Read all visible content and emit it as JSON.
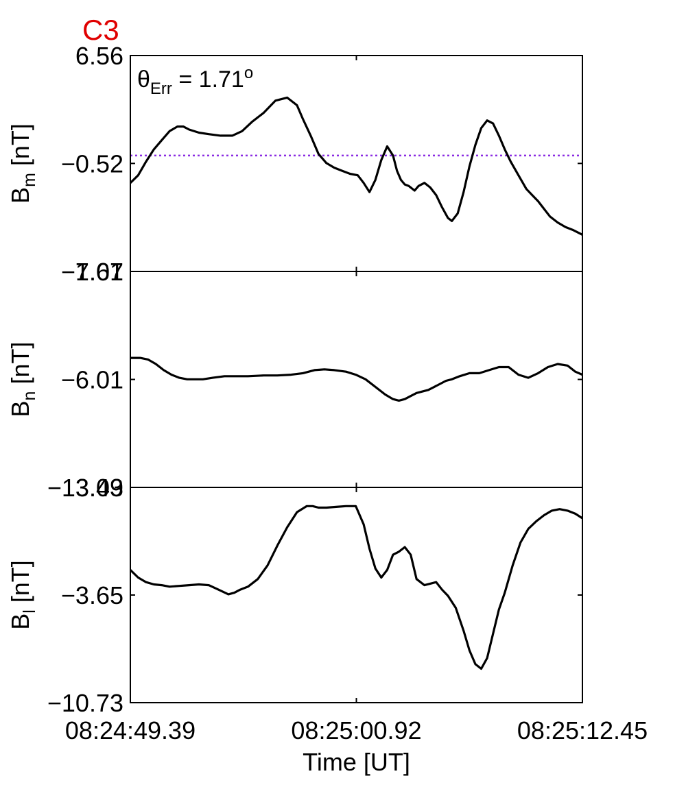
{
  "chart_data": {
    "type": "line",
    "title": "C3",
    "title_color": "#e00000",
    "line_color": "#000000",
    "reference_line_color": "#8a2be2",
    "xlabel": "Time [UT]",
    "x_unit": "seconds after 08:24:49.39",
    "x_range": [
      0,
      23.06
    ],
    "x_ticks": [
      0,
      11.53,
      23.06
    ],
    "x_tick_labels": [
      "08:24:49.39",
      "08:25:00.92",
      "08:25:12.45"
    ],
    "panels": [
      {
        "name": "Bm",
        "ylabel_main": "B",
        "ylabel_sub": "m",
        "ylabel_unit": " [nT]",
        "ylim": [
          -7.61,
          6.56
        ],
        "yticks": [
          6.56,
          -0.52,
          -7.61
        ],
        "ytick_labels": [
          "6.56",
          "−0.52",
          "−7.61"
        ],
        "annotation_main": "θ",
        "annotation_sub": "Err",
        "annotation_rest": " =  1.71",
        "annotation_sup": "o",
        "reference_value": 0.0,
        "series": [
          {
            "x": [
              0,
              0.4,
              0.8,
              1.2,
              1.6,
              2.0,
              2.4,
              2.7,
              3.0,
              3.5,
              4.0,
              4.6,
              5.2,
              5.7,
              6.2,
              6.8,
              7.4,
              8.0,
              8.5,
              8.8,
              9.2,
              9.6,
              10.0,
              10.4,
              10.8,
              11.2,
              11.6,
              11.9,
              12.2,
              12.5,
              12.8,
              13.1,
              13.4,
              13.6,
              13.8,
              14.0,
              14.2,
              14.5,
              14.7,
              15.0,
              15.3,
              15.6,
              15.9,
              16.2,
              16.4,
              16.7,
              17.0,
              17.3,
              17.6,
              17.9,
              18.2,
              18.5,
              18.8,
              19.1,
              19.4,
              19.8,
              20.2,
              20.5,
              20.8,
              21.1,
              21.4,
              21.8,
              22.2,
              22.6,
              23.06
            ],
            "y": [
              -1.8,
              -1.3,
              -0.4,
              0.4,
              1.0,
              1.6,
              1.9,
              1.9,
              1.7,
              1.5,
              1.4,
              1.3,
              1.3,
              1.6,
              2.2,
              2.8,
              3.6,
              3.8,
              3.3,
              2.4,
              1.3,
              0.1,
              -0.5,
              -0.8,
              -1.0,
              -1.2,
              -1.3,
              -1.8,
              -2.4,
              -1.6,
              -0.3,
              0.6,
              0.0,
              -1.0,
              -1.6,
              -1.9,
              -2.0,
              -2.3,
              -2.0,
              -1.8,
              -2.1,
              -2.6,
              -3.4,
              -4.1,
              -4.3,
              -3.8,
              -2.4,
              -0.7,
              0.7,
              1.8,
              2.3,
              2.1,
              1.3,
              0.4,
              -0.4,
              -1.3,
              -2.2,
              -2.6,
              -3.0,
              -3.5,
              -4.0,
              -4.4,
              -4.7,
              -4.9,
              -5.2
            ]
          }
        ]
      },
      {
        "name": "Bn",
        "ylabel_main": "B",
        "ylabel_sub": "n",
        "ylabel_unit": " [nT]",
        "ylim": [
          -13.09,
          1.07
        ],
        "yticks": [
          1.07,
          -6.01,
          -13.09
        ],
        "ytick_labels": [
          "1.07",
          "−6.01",
          "−13.09"
        ],
        "series": [
          {
            "x": [
              0,
              0.5,
              0.9,
              1.3,
              1.7,
              2.1,
              2.5,
              2.9,
              3.3,
              3.7,
              4.2,
              4.8,
              5.4,
              6.0,
              6.8,
              7.5,
              8.2,
              8.8,
              9.4,
              9.9,
              10.4,
              11.0,
              11.5,
              12.0,
              12.5,
              13.0,
              13.4,
              13.7,
              14.0,
              14.3,
              14.6,
              14.9,
              15.2,
              15.5,
              15.8,
              16.1,
              16.4,
              16.8,
              17.3,
              17.8,
              18.3,
              18.8,
              19.3,
              19.8,
              20.3,
              20.8,
              21.3,
              21.8,
              22.3,
              22.7,
              23.06
            ],
            "y": [
              -4.6,
              -4.6,
              -4.7,
              -5.0,
              -5.4,
              -5.7,
              -5.9,
              -6.0,
              -6.0,
              -6.0,
              -5.9,
              -5.8,
              -5.8,
              -5.8,
              -5.75,
              -5.75,
              -5.7,
              -5.6,
              -5.4,
              -5.35,
              -5.4,
              -5.5,
              -5.7,
              -6.0,
              -6.5,
              -7.0,
              -7.3,
              -7.4,
              -7.3,
              -7.1,
              -6.9,
              -6.8,
              -6.7,
              -6.5,
              -6.3,
              -6.1,
              -6.0,
              -5.8,
              -5.6,
              -5.6,
              -5.4,
              -5.2,
              -5.2,
              -5.7,
              -5.9,
              -5.6,
              -5.2,
              -5.0,
              -5.1,
              -5.5,
              -5.7
            ]
          }
        ]
      },
      {
        "name": "Bl",
        "ylabel_main": "B",
        "ylabel_sub": "l",
        "ylabel_unit": " [nT]",
        "ylim": [
          -10.73,
          3.43
        ],
        "yticks": [
          3.43,
          -3.65,
          -10.73
        ],
        "ytick_labels": [
          "3.43",
          "−3.65",
          "−10.73"
        ],
        "series": [
          {
            "x": [
              0,
              0.4,
              0.8,
              1.2,
              1.6,
              2.0,
              2.5,
              3.0,
              3.5,
              4.0,
              4.5,
              5.0,
              5.3,
              5.6,
              6.0,
              6.5,
              7.0,
              7.5,
              8.0,
              8.5,
              9.0,
              9.3,
              9.6,
              10.0,
              10.5,
              11.0,
              11.5,
              11.9,
              12.2,
              12.5,
              12.8,
              13.1,
              13.4,
              13.7,
              14.0,
              14.3,
              14.6,
              15.0,
              15.3,
              15.6,
              15.9,
              16.2,
              16.6,
              17.0,
              17.3,
              17.6,
              17.9,
              18.2,
              18.5,
              18.8,
              19.1,
              19.5,
              19.9,
              20.3,
              20.7,
              21.1,
              21.5,
              21.9,
              22.3,
              22.7,
              23.06
            ],
            "y": [
              -2.0,
              -2.5,
              -2.8,
              -2.95,
              -3.0,
              -3.1,
              -3.05,
              -3.0,
              -2.95,
              -3.0,
              -3.3,
              -3.6,
              -3.5,
              -3.3,
              -3.1,
              -2.6,
              -1.7,
              -0.4,
              0.8,
              1.8,
              2.2,
              2.2,
              2.1,
              2.1,
              2.15,
              2.2,
              2.2,
              1.0,
              -0.6,
              -1.9,
              -2.5,
              -2.0,
              -1.0,
              -0.8,
              -0.5,
              -1.0,
              -2.6,
              -3.0,
              -2.9,
              -2.8,
              -3.3,
              -3.7,
              -4.5,
              -6.0,
              -7.3,
              -8.2,
              -8.5,
              -7.8,
              -6.2,
              -4.6,
              -3.5,
              -1.7,
              -0.2,
              0.7,
              1.2,
              1.6,
              1.9,
              2.0,
              1.9,
              1.7,
              1.4
            ]
          }
        ]
      }
    ]
  }
}
